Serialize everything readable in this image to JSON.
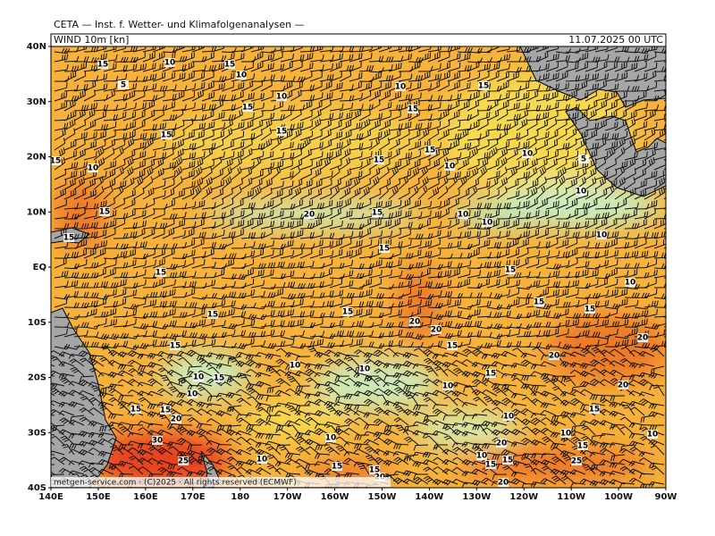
{
  "header": {
    "title": "CETA — Inst. f. Wetter- und Klimafolgenanalysen —",
    "panel_label": "WIND 10m [kn]",
    "valid_time": "11.07.2025 00 UTC",
    "footer": "metgen-service.com · (C)2025 · All rights reserved (ECMWF)"
  },
  "lat_labels": [
    "40N",
    "30N",
    "20N",
    "10N",
    "EQ",
    "10S",
    "20S",
    "30S",
    "40S"
  ],
  "lon_labels": [
    "140E",
    "150E",
    "160E",
    "170E",
    "180",
    "170W",
    "160W",
    "150W",
    "140W",
    "130W",
    "120W",
    "110W",
    "100W",
    "90W"
  ],
  "contour_labels": [
    15,
    10,
    15,
    10,
    5,
    10,
    15,
    10,
    15,
    15,
    15,
    15,
    15,
    10,
    15,
    15,
    10,
    10,
    5,
    10,
    15,
    20,
    15,
    10,
    10,
    10,
    15,
    15,
    15,
    15,
    10,
    15,
    15,
    15,
    15,
    20,
    20,
    20,
    15,
    15,
    20,
    10,
    10,
    15,
    10,
    15,
    10,
    20,
    10,
    15,
    15,
    20,
    10,
    15,
    10,
    20,
    10,
    10,
    30,
    15,
    25,
    10,
    10,
    15,
    15,
    20,
    15,
    15,
    25,
    20
  ]
}
